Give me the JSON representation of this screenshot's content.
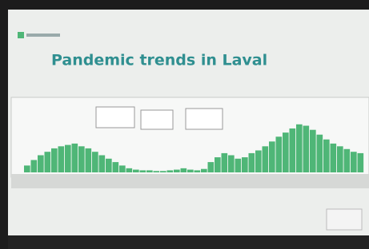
{
  "slide": {
    "title": "Pandemic trends in Laval"
  },
  "chart_data": {
    "type": "bar",
    "color": "#4fb677",
    "ylim": [
      0,
      100
    ],
    "values": [
      10,
      18,
      25,
      30,
      35,
      38,
      40,
      42,
      38,
      35,
      30,
      25,
      20,
      15,
      10,
      6,
      4,
      3,
      3,
      2,
      2,
      3,
      4,
      6,
      4,
      3,
      5,
      15,
      22,
      28,
      25,
      20,
      22,
      28,
      32,
      38,
      45,
      52,
      58,
      64,
      70,
      68,
      62,
      55,
      48,
      42,
      38,
      34,
      30,
      28
    ]
  }
}
